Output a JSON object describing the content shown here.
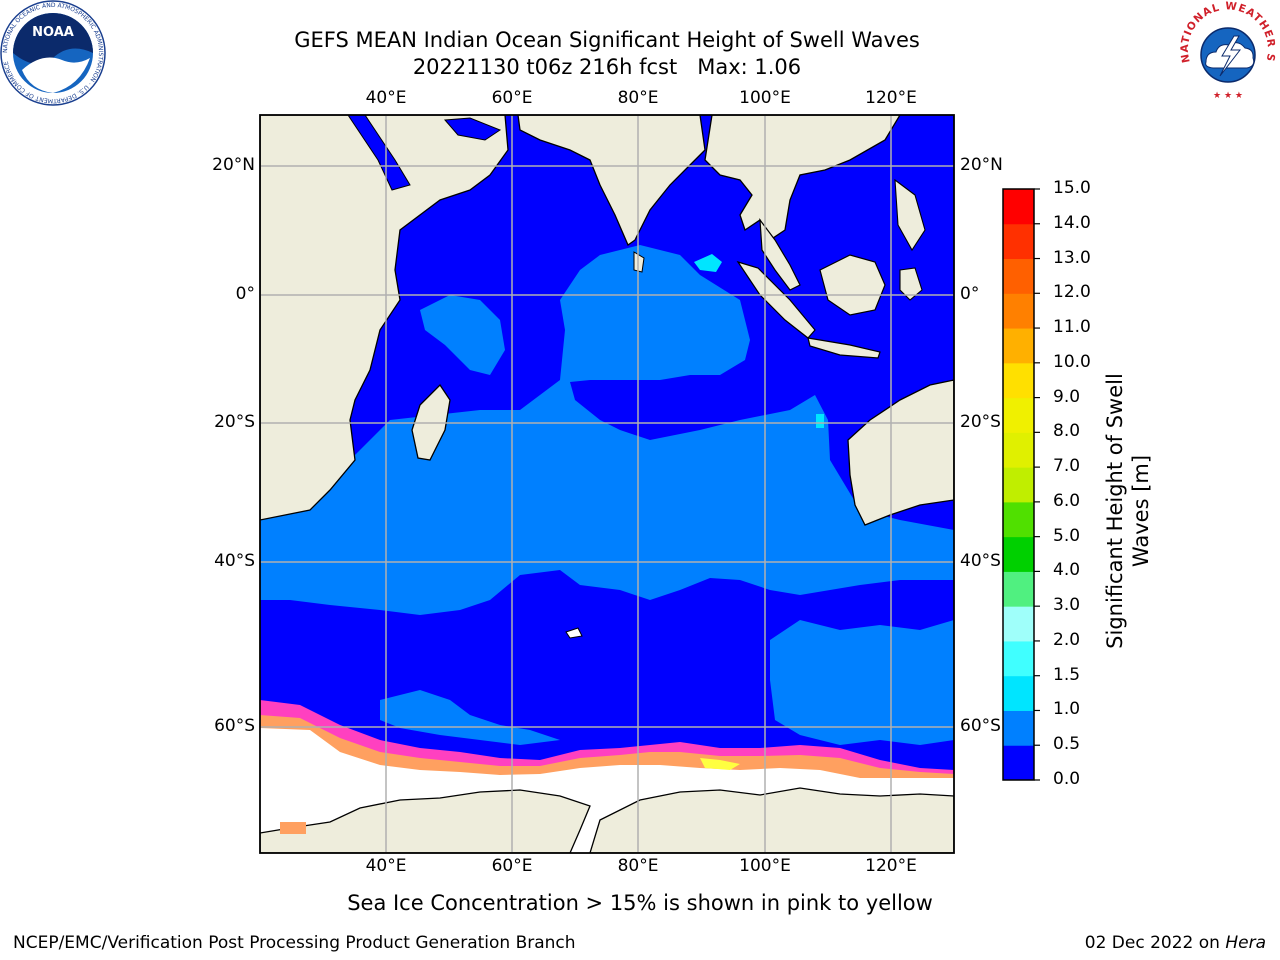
{
  "title_line1": "GEFS MEAN Indian Ocean Significant Height of Swell Waves",
  "title_line2": "20221130 t06z 216h fcst   Max: 1.06",
  "logos": {
    "noaa_text": "NOAA",
    "noaa_ring_text": "NATIONAL OCEANIC AND ATMOSPHERIC ADMINISTRATION · U.S. DEPARTMENT OF COMMERCE",
    "nws_ring_text": "NATIONAL WEATHER SERVICE"
  },
  "map": {
    "lon_labels": [
      "40°E",
      "60°E",
      "80°E",
      "100°E",
      "120°E"
    ],
    "lat_labels": [
      "20°N",
      "0°",
      "20°S",
      "40°S",
      "60°S"
    ]
  },
  "colorbar": {
    "label": "Significant Height of Swell Waves [m]",
    "ticks": [
      "0.0",
      "0.5",
      "1.0",
      "1.5",
      "2.0",
      "3.0",
      "4.0",
      "5.0",
      "6.0",
      "7.0",
      "8.0",
      "9.0",
      "10.0",
      "11.0",
      "12.0",
      "13.0",
      "14.0",
      "15.0"
    ],
    "colors": [
      "#0000ff",
      "#0080ff",
      "#00e5ff",
      "#40ffff",
      "#9ffffa",
      "#50f080",
      "#00d000",
      "#50e000",
      "#c0ee00",
      "#e0f000",
      "#f0f000",
      "#ffe000",
      "#ffb000",
      "#ff8000",
      "#ff6000",
      "#ff3000",
      "#ff0000"
    ]
  },
  "colors": {
    "land": "#eeeddc",
    "ice_low": "#ff40c0",
    "ice_mid": "#ffa060",
    "ice_high": "#ffff40",
    "grid": "#b0b0b0"
  },
  "caption": "Sea Ice Concentration > 15% is shown in pink to yellow",
  "footer_left": "NCEP/EMC/Verification Post Processing Product Generation Branch",
  "footer_right_prefix": "02 Dec 2022 on ",
  "footer_right_host": "Hera"
}
